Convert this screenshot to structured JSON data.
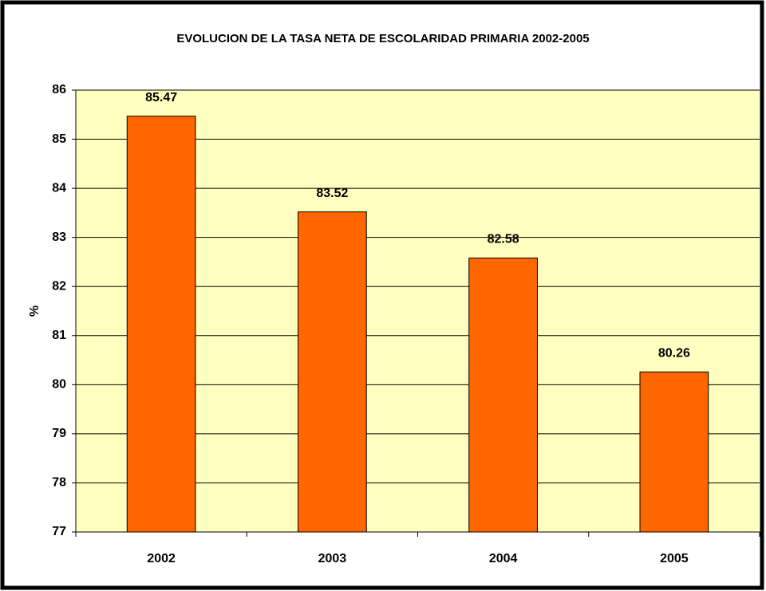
{
  "chart_data": {
    "type": "bar",
    "title": "EVOLUCION DE LA TASA NETA DE ESCOLARIDAD PRIMARIA 2002-2005",
    "y_label": "%",
    "categories": [
      "2002",
      "2003",
      "2004",
      "2005"
    ],
    "values": [
      85.47,
      83.52,
      82.58,
      80.26
    ],
    "color": "#ff6600",
    "ylim": [
      77,
      86
    ],
    "yticks": [
      77,
      78,
      79,
      80,
      81,
      82,
      83,
      84,
      85,
      86
    ],
    "grid": true
  }
}
